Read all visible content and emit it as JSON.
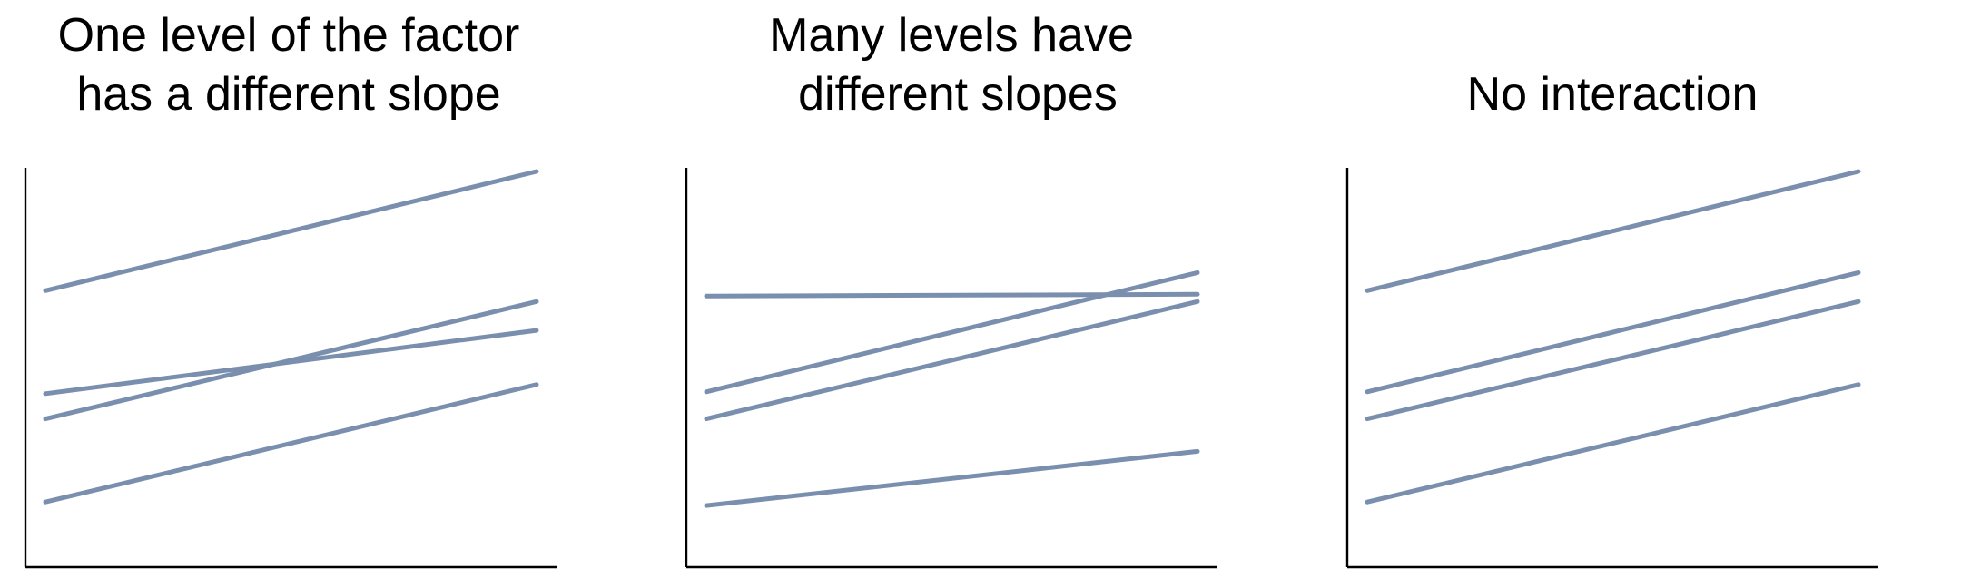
{
  "style": {
    "line_color": "#7a8fae",
    "axis_color": "#000000",
    "background": "#ffffff"
  },
  "chart_data": [
    {
      "type": "line",
      "title_lines": [
        "One level of the factor",
        "has a different slope"
      ],
      "xlabel": "",
      "ylabel": "",
      "xlim": [
        0,
        1
      ],
      "ylim": [
        0,
        1
      ],
      "grid": false,
      "x": [
        0,
        1
      ],
      "series": [
        {
          "values": [
            0.67,
            1.0
          ]
        },
        {
          "values": [
            0.385,
            0.56
          ]
        },
        {
          "values": [
            0.315,
            0.64
          ]
        },
        {
          "values": [
            0.085,
            0.41
          ]
        }
      ]
    },
    {
      "type": "line",
      "title_lines": [
        "Many levels have",
        "different slopes"
      ],
      "xlabel": "",
      "ylabel": "",
      "xlim": [
        0,
        1
      ],
      "ylim": [
        0,
        1
      ],
      "grid": false,
      "x": [
        0,
        1
      ],
      "series": [
        {
          "values": [
            0.655,
            0.66
          ]
        },
        {
          "values": [
            0.39,
            0.72
          ]
        },
        {
          "values": [
            0.315,
            0.64
          ]
        },
        {
          "values": [
            0.075,
            0.225
          ]
        }
      ]
    },
    {
      "type": "line",
      "title_lines": [
        "No interaction"
      ],
      "xlabel": "",
      "ylabel": "",
      "xlim": [
        0,
        1
      ],
      "ylim": [
        0,
        1
      ],
      "grid": false,
      "x": [
        0,
        1
      ],
      "series": [
        {
          "values": [
            0.67,
            1.0
          ]
        },
        {
          "values": [
            0.39,
            0.72
          ]
        },
        {
          "values": [
            0.315,
            0.64
          ]
        },
        {
          "values": [
            0.085,
            0.41
          ]
        }
      ]
    }
  ]
}
